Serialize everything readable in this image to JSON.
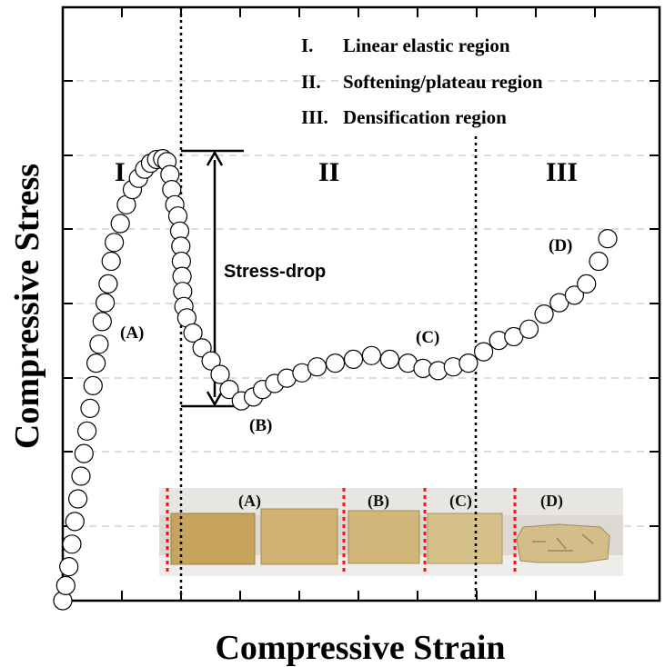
{
  "chart_data": {
    "type": "scatter",
    "xlabel": "Compressive Strain",
    "ylabel": "Compressive Stress",
    "xlim": [
      0,
      9
    ],
    "ylim": [
      0,
      7
    ],
    "grid": "horizontal dashed",
    "legend": [
      {
        "numeral": "I.",
        "text": "Linear elastic region"
      },
      {
        "numeral": "II.",
        "text": "Softening/plateau region"
      },
      {
        "numeral": "III.",
        "text": "Densification region"
      }
    ],
    "regions": [
      {
        "label": "I",
        "x": 0.9
      },
      {
        "label": "II",
        "x": 2.5
      },
      {
        "label": "III",
        "x": 7.7
      }
    ],
    "region_boundaries": [
      1.0,
      6.9
    ],
    "annotations": {
      "stress_drop": {
        "label": "Stress-drop",
        "y_top": 6.05,
        "y_bottom": 2.6,
        "x": 2.6
      },
      "points": [
        {
          "label": "(A)",
          "x": 0.9,
          "y": 3.6
        },
        {
          "label": "(B)",
          "x": 1.4,
          "y": 2.4
        },
        {
          "label": "(C)",
          "x": 4.2,
          "y": 3.2
        },
        {
          "label": "(D)",
          "x": 8.6,
          "y": 4.7
        }
      ]
    },
    "series": [
      {
        "points": [
          [
            0,
            0
          ],
          [
            0.05,
            0.2
          ],
          [
            0.1,
            0.45
          ],
          [
            0.15,
            0.75
          ],
          [
            0.2,
            1.05
          ],
          [
            0.25,
            1.35
          ],
          [
            0.3,
            1.65
          ],
          [
            0.35,
            1.95
          ],
          [
            0.4,
            2.25
          ],
          [
            0.45,
            2.55
          ],
          [
            0.5,
            2.85
          ],
          [
            0.55,
            3.15
          ],
          [
            0.6,
            3.4
          ],
          [
            0.65,
            3.7
          ],
          [
            0.7,
            3.95
          ],
          [
            0.75,
            4.2
          ],
          [
            0.8,
            4.5
          ],
          [
            0.85,
            4.75
          ],
          [
            0.95,
            5.0
          ],
          [
            1.05,
            5.25
          ],
          [
            1.15,
            5.45
          ],
          [
            1.25,
            5.6
          ],
          [
            1.35,
            5.72
          ],
          [
            1.45,
            5.8
          ],
          [
            1.55,
            5.85
          ],
          [
            1.65,
            5.86
          ],
          [
            1.72,
            5.82
          ],
          [
            1.77,
            5.65
          ],
          [
            1.8,
            5.45
          ],
          [
            1.85,
            5.25
          ],
          [
            1.9,
            5.1
          ],
          [
            1.93,
            4.9
          ],
          [
            1.95,
            4.7
          ],
          [
            1.96,
            4.5
          ],
          [
            1.97,
            4.3
          ],
          [
            1.98,
            4.1
          ],
          [
            2.0,
            3.9
          ],
          [
            2.05,
            3.75
          ],
          [
            2.15,
            3.55
          ],
          [
            2.3,
            3.35
          ],
          [
            2.45,
            3.18
          ],
          [
            2.6,
            3.0
          ],
          [
            2.75,
            2.8
          ],
          [
            2.95,
            2.65
          ],
          [
            3.15,
            2.7
          ],
          [
            3.3,
            2.8
          ],
          [
            3.5,
            2.88
          ],
          [
            3.7,
            2.95
          ],
          [
            3.95,
            3.02
          ],
          [
            4.2,
            3.1
          ],
          [
            4.5,
            3.15
          ],
          [
            4.8,
            3.2
          ],
          [
            5.1,
            3.25
          ],
          [
            5.4,
            3.2
          ],
          [
            5.7,
            3.15
          ],
          [
            5.95,
            3.08
          ],
          [
            6.2,
            3.05
          ],
          [
            6.45,
            3.1
          ],
          [
            6.7,
            3.15
          ],
          [
            6.95,
            3.3
          ],
          [
            7.2,
            3.45
          ],
          [
            7.45,
            3.5
          ],
          [
            7.7,
            3.6
          ],
          [
            7.95,
            3.8
          ],
          [
            8.2,
            3.95
          ],
          [
            8.45,
            4.05
          ],
          [
            8.65,
            4.2
          ],
          [
            8.85,
            4.5
          ],
          [
            9.0,
            4.8
          ]
        ]
      }
    ],
    "photo": {
      "labels": [
        "(A)",
        "(B)",
        "(C)",
        "(D)"
      ]
    },
    "colors": {
      "marker_stroke": "#000000",
      "grid": "#bbbbbb",
      "divider_red": "#ff1010",
      "sample_tan": "#c9a865"
    }
  }
}
